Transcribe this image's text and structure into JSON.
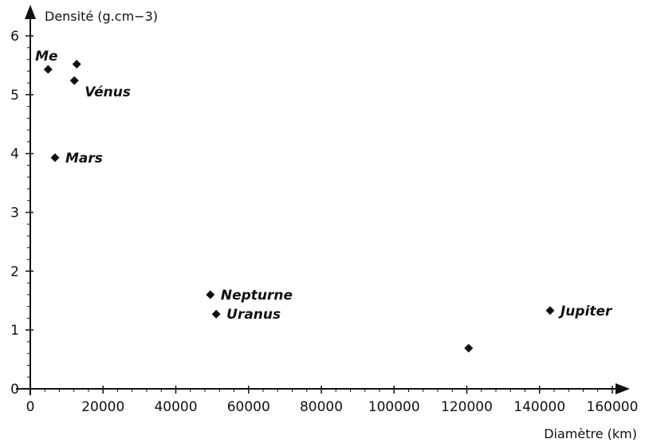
{
  "chart_data": {
    "type": "scatter",
    "xlabel": "Diamètre (km)",
    "ylabel": "Densité (g.cm−3)",
    "xlim": [
      0,
      160000
    ],
    "ylim": [
      0,
      6
    ],
    "xticks": [
      0,
      20000,
      40000,
      60000,
      80000,
      100000,
      120000,
      140000,
      160000
    ],
    "yticks": [
      0,
      1,
      2,
      3,
      4,
      5,
      6
    ],
    "grid": false,
    "points": [
      {
        "label": "Me",
        "x": 4900,
        "y": 5.43
      },
      {
        "label": "",
        "x": 12750,
        "y": 5.52
      },
      {
        "label": "Vénus",
        "x": 12100,
        "y": 5.24
      },
      {
        "label": "Mars",
        "x": 6800,
        "y": 3.93
      },
      {
        "label": "Nepturne",
        "x": 49500,
        "y": 1.6
      },
      {
        "label": "Uranus",
        "x": 51100,
        "y": 1.27
      },
      {
        "label": "",
        "x": 120500,
        "y": 0.69
      },
      {
        "label": "Jupiter",
        "x": 142900,
        "y": 1.33
      }
    ]
  }
}
